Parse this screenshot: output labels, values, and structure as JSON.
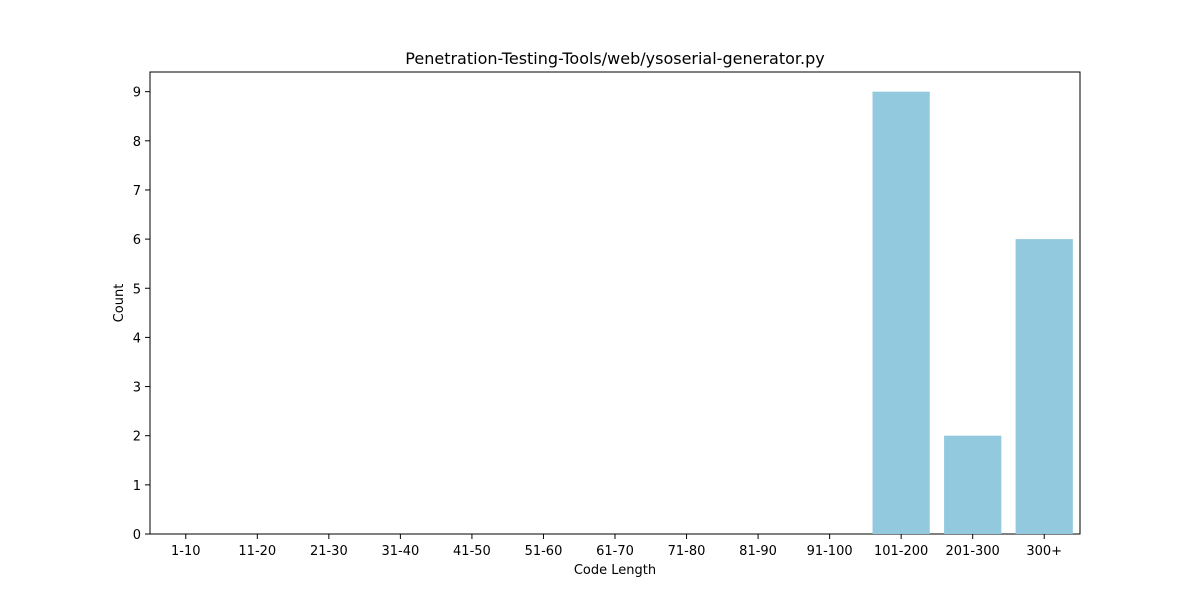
{
  "chart_data": {
    "type": "bar",
    "title": "Penetration-Testing-Tools/web/ysoserial-generator.py",
    "xlabel": "Code Length",
    "ylabel": "Count",
    "categories": [
      "1-10",
      "11-20",
      "21-30",
      "31-40",
      "41-50",
      "51-60",
      "61-70",
      "71-80",
      "81-90",
      "91-100",
      "101-200",
      "201-300",
      "300+"
    ],
    "values": [
      0,
      0,
      0,
      0,
      0,
      0,
      0,
      0,
      0,
      0,
      9,
      2,
      6
    ],
    "ylim": [
      0,
      9.4
    ],
    "yticks": [
      0,
      1,
      2,
      3,
      4,
      5,
      6,
      7,
      8,
      9
    ],
    "grid": false,
    "bar_color": "#92c9de"
  }
}
